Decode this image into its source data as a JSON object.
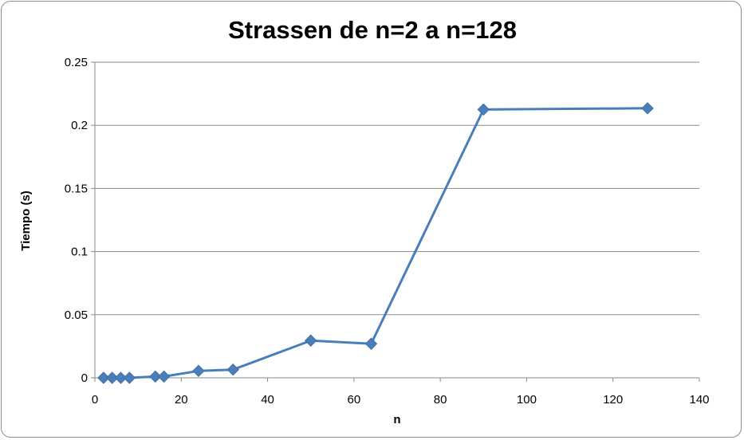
{
  "chart_data": {
    "type": "line",
    "title": "Strassen de n=2 a n=128",
    "xlabel": "n",
    "ylabel": "Tiempo (s)",
    "xlim": [
      0,
      140
    ],
    "ylim": [
      0,
      0.25
    ],
    "x_ticks": [
      "0",
      "20",
      "40",
      "60",
      "80",
      "100",
      "120",
      "140"
    ],
    "y_ticks": [
      "0",
      "0.05",
      "0.1",
      "0.15",
      "0.2",
      "0.25"
    ],
    "grid": "horizontal",
    "legend": "none",
    "series": [
      {
        "color": "#4a7ebb",
        "marker": "diamond",
        "x": [
          2,
          4,
          6,
          8,
          14,
          16,
          24,
          32,
          50,
          64,
          90,
          128
        ],
        "y": [
          0.0,
          0.0,
          0.0,
          0.0,
          0.001,
          0.001,
          0.0055,
          0.0065,
          0.0295,
          0.027,
          0.2125,
          0.2135
        ]
      }
    ]
  }
}
